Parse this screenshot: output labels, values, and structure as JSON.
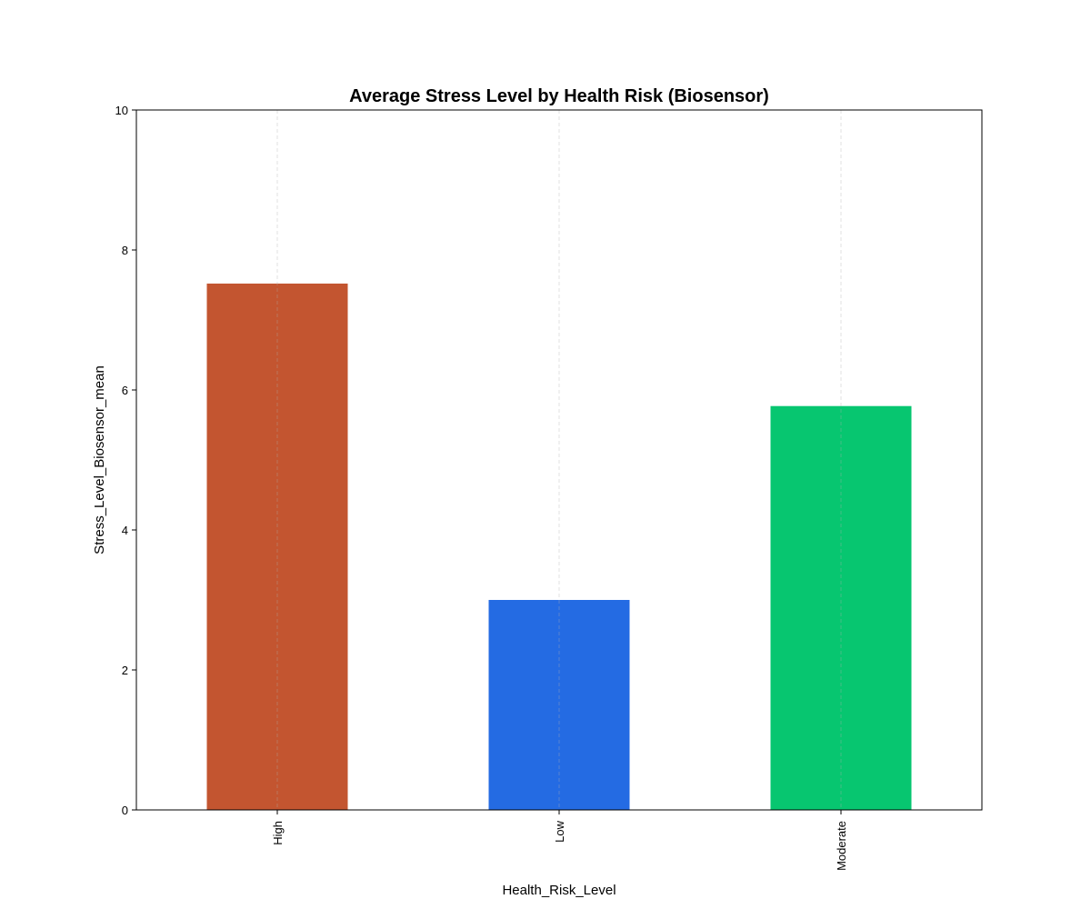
{
  "chart_data": {
    "type": "bar",
    "title": "Average Stress Level by Health Risk (Biosensor)",
    "xlabel": "Health_Risk_Level",
    "ylabel": "Stress_Level_Biosensor_mean",
    "categories": [
      "High",
      "Low",
      "Moderate"
    ],
    "values": [
      7.52,
      3.0,
      5.77
    ],
    "colors": [
      "#C35530",
      "#246BE3",
      "#07C670"
    ],
    "ylim": [
      0,
      10
    ],
    "yticks": [
      "0",
      "2",
      "4",
      "6",
      "8",
      "10"
    ],
    "grid": "x-dashed",
    "legend": "none"
  }
}
